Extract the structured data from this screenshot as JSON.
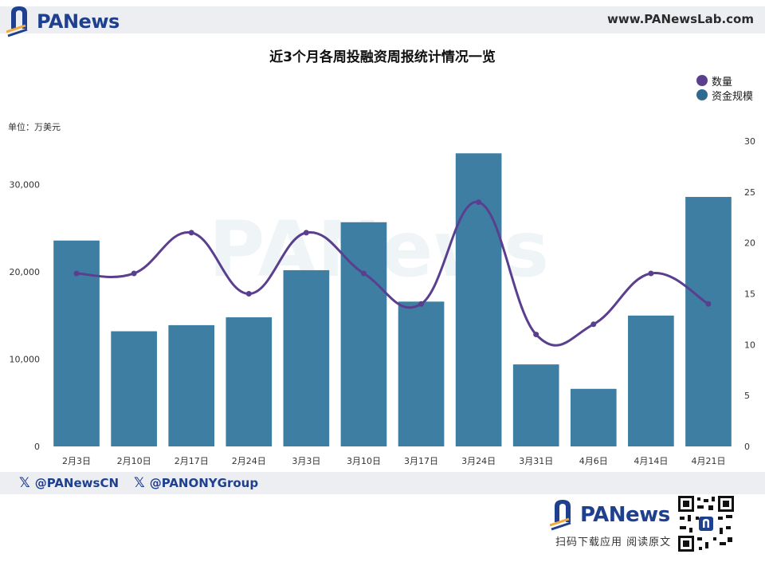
{
  "header": {
    "brand": "PANews",
    "url": "www.PANewsLab.com"
  },
  "chart_data": {
    "type": "bar+line",
    "title": "近3个月各周投融资周报统计情况一览",
    "unit_label": "单位：万美元",
    "categories": [
      "2月3日",
      "2月10日",
      "2月17日",
      "2月24日",
      "3月3日",
      "3月10日",
      "3月17日",
      "3月24日",
      "3月31日",
      "4月6日",
      "4月14日",
      "4月21日"
    ],
    "series": [
      {
        "name": "资金规模",
        "type": "bar",
        "axis": "left",
        "color": "#3e7ea3",
        "values": [
          23600,
          13200,
          13900,
          14800,
          20200,
          25700,
          16600,
          33600,
          9400,
          6600,
          15000,
          28600
        ]
      },
      {
        "name": "数量",
        "type": "line",
        "axis": "right",
        "color": "#5b3f8f",
        "values": [
          17,
          17,
          21,
          15,
          21,
          17,
          14,
          24,
          11,
          12,
          17,
          14
        ]
      }
    ],
    "left_axis": {
      "min": 0,
      "max": 35000,
      "ticks": [
        0,
        10000,
        20000,
        30000
      ],
      "tick_labels": [
        "0",
        "10,000",
        "20,000",
        "30,000"
      ]
    },
    "right_axis": {
      "min": 0,
      "max": 30,
      "ticks": [
        0,
        5,
        10,
        15,
        20,
        25,
        30
      ],
      "tick_labels": [
        "0",
        "5",
        "10",
        "15",
        "20",
        "25",
        "30"
      ]
    },
    "legend_position": "top-right",
    "grid": false
  },
  "footer": {
    "social": [
      "@PANewsCN",
      "@PANONYGroup"
    ],
    "brand": "PANews",
    "cta": "扫码下载应用  阅读原文"
  },
  "colors": {
    "brand": "#1f3f8f",
    "bar": "#3e7ea3",
    "line": "#5b3f8f",
    "bar_legend": "#2f6b90"
  }
}
